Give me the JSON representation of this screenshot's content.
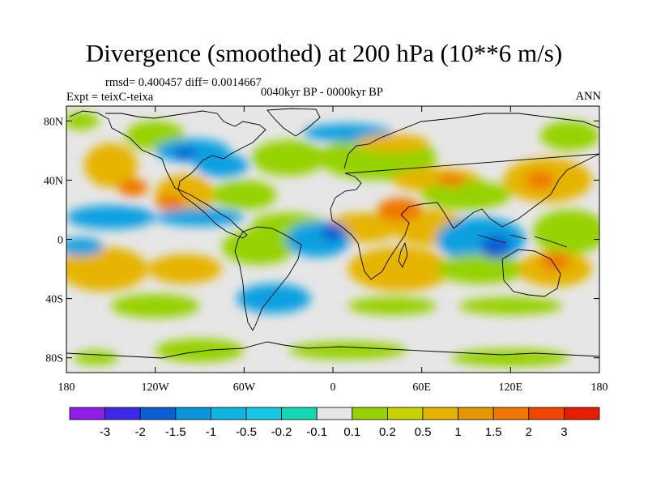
{
  "header": {
    "title": "Divergence (smoothed) at 200 hPa (10**6 m/s)",
    "stats": "rmsd= 0.400457 diff= 0.0014667",
    "experiment": "Expt = teixC-teixa",
    "period": "0040kyr BP - 0000kyr BP",
    "season": "ANN"
  },
  "map": {
    "projection": "cylindrical-equidistant",
    "lon_range": [
      -180,
      180
    ],
    "lat_range": [
      -90,
      90
    ],
    "y_ticks": [
      {
        "lat": 80,
        "label": "80N"
      },
      {
        "lat": 40,
        "label": "40N"
      },
      {
        "lat": 0,
        "label": "0"
      },
      {
        "lat": -40,
        "label": "40S"
      },
      {
        "lat": -80,
        "label": "80S"
      }
    ],
    "x_ticks": [
      {
        "lon": -180,
        "label": "180"
      },
      {
        "lon": -120,
        "label": "120W"
      },
      {
        "lon": -60,
        "label": "60W"
      },
      {
        "lon": 0,
        "label": "0"
      },
      {
        "lon": 60,
        "label": "60E"
      },
      {
        "lon": 120,
        "label": "120E"
      },
      {
        "lon": 180,
        "label": "180"
      }
    ],
    "blobs": [
      {
        "lon": -170,
        "lat": 80,
        "rx": 12,
        "ry": 6,
        "color": "#96d200"
      },
      {
        "lon": -120,
        "lat": 70,
        "rx": 20,
        "ry": 10,
        "color": "#96d200"
      },
      {
        "lon": -95,
        "lat": 60,
        "rx": 25,
        "ry": 8,
        "color": "#0fa0e1"
      },
      {
        "lon": -75,
        "lat": 50,
        "rx": 18,
        "ry": 8,
        "color": "#0fa0e1"
      },
      {
        "lon": -150,
        "lat": 50,
        "rx": 18,
        "ry": 15,
        "color": "#e6b400"
      },
      {
        "lon": -100,
        "lat": 30,
        "rx": 20,
        "ry": 14,
        "color": "#e6b400"
      },
      {
        "lon": -60,
        "lat": 30,
        "rx": 22,
        "ry": 10,
        "color": "#96d200"
      },
      {
        "lon": -30,
        "lat": 55,
        "rx": 25,
        "ry": 12,
        "color": "#96d200"
      },
      {
        "lon": 30,
        "lat": 55,
        "rx": 40,
        "ry": 15,
        "color": "#96d200"
      },
      {
        "lon": 10,
        "lat": 72,
        "rx": 30,
        "ry": 6,
        "color": "#0fa0e1"
      },
      {
        "lon": 40,
        "lat": 65,
        "rx": 25,
        "ry": 6,
        "color": "#e6b400"
      },
      {
        "lon": 70,
        "lat": 40,
        "rx": 30,
        "ry": 8,
        "color": "#e6b400"
      },
      {
        "lon": 90,
        "lat": 30,
        "rx": 30,
        "ry": 10,
        "color": "#96d200"
      },
      {
        "lon": 145,
        "lat": 40,
        "rx": 30,
        "ry": 15,
        "color": "#e6b400"
      },
      {
        "lon": 160,
        "lat": 70,
        "rx": 20,
        "ry": 10,
        "color": "#96d200"
      },
      {
        "lon": -150,
        "lat": 15,
        "rx": 30,
        "ry": 8,
        "color": "#0fa0e1"
      },
      {
        "lon": -90,
        "lat": 15,
        "rx": 30,
        "ry": 6,
        "color": "#0fa0e1"
      },
      {
        "lon": -30,
        "lat": 10,
        "rx": 25,
        "ry": 8,
        "color": "#96d200"
      },
      {
        "lon": 20,
        "lat": 8,
        "rx": 25,
        "ry": 10,
        "color": "#e6b400"
      },
      {
        "lon": 65,
        "lat": 8,
        "rx": 25,
        "ry": 12,
        "color": "#e6b400"
      },
      {
        "lon": 100,
        "lat": 0,
        "rx": 30,
        "ry": 15,
        "color": "#0fa0e1"
      },
      {
        "lon": 160,
        "lat": 5,
        "rx": 25,
        "ry": 15,
        "color": "#96d200"
      },
      {
        "lon": -155,
        "lat": -20,
        "rx": 30,
        "ry": 15,
        "color": "#e6b400"
      },
      {
        "lon": -170,
        "lat": -5,
        "rx": 15,
        "ry": 6,
        "color": "#0fa0e1"
      },
      {
        "lon": -100,
        "lat": -20,
        "rx": 25,
        "ry": 10,
        "color": "#e6b400"
      },
      {
        "lon": -50,
        "lat": -5,
        "rx": 25,
        "ry": 12,
        "color": "#96d200"
      },
      {
        "lon": -10,
        "lat": 0,
        "rx": 22,
        "ry": 12,
        "color": "#0fa0e1"
      },
      {
        "lon": 0,
        "lat": 5,
        "rx": 8,
        "ry": 6,
        "color": "#0a5fd2"
      },
      {
        "lon": 45,
        "lat": -20,
        "rx": 35,
        "ry": 15,
        "color": "#e6b400"
      },
      {
        "lon": 100,
        "lat": -20,
        "rx": 30,
        "ry": 10,
        "color": "#96d200"
      },
      {
        "lon": 150,
        "lat": -20,
        "rx": 25,
        "ry": 12,
        "color": "#e6b400"
      },
      {
        "lon": -120,
        "lat": -45,
        "rx": 30,
        "ry": 8,
        "color": "#96d200"
      },
      {
        "lon": -40,
        "lat": -40,
        "rx": 25,
        "ry": 10,
        "color": "#0fa0e1"
      },
      {
        "lon": 40,
        "lat": -45,
        "rx": 30,
        "ry": 6,
        "color": "#96d200"
      },
      {
        "lon": 120,
        "lat": -45,
        "rx": 35,
        "ry": 6,
        "color": "#96d200"
      },
      {
        "lon": -160,
        "lat": -80,
        "rx": 15,
        "ry": 5,
        "color": "#96d200"
      },
      {
        "lon": -90,
        "lat": -75,
        "rx": 30,
        "ry": 8,
        "color": "#96d200"
      },
      {
        "lon": 10,
        "lat": -75,
        "rx": 40,
        "ry": 6,
        "color": "#96d200"
      },
      {
        "lon": 120,
        "lat": -80,
        "rx": 40,
        "ry": 6,
        "color": "#96d200"
      },
      {
        "lon": -135,
        "lat": 35,
        "rx": 10,
        "ry": 6,
        "color": "#f07800"
      },
      {
        "lon": -110,
        "lat": 25,
        "rx": 10,
        "ry": 5,
        "color": "#f07800"
      },
      {
        "lon": 140,
        "lat": 40,
        "rx": 10,
        "ry": 6,
        "color": "#f07800"
      },
      {
        "lon": 80,
        "lat": 40,
        "rx": 10,
        "ry": 4,
        "color": "#f07800"
      },
      {
        "lon": 110,
        "lat": -5,
        "rx": 10,
        "ry": 8,
        "color": "#0a5fd2"
      },
      {
        "lon": -100,
        "lat": 58,
        "rx": 8,
        "ry": 4,
        "color": "#0a5fd2"
      },
      {
        "lon": 45,
        "lat": 20,
        "rx": 15,
        "ry": 8,
        "color": "#f07800"
      },
      {
        "lon": 150,
        "lat": -15,
        "rx": 10,
        "ry": 6,
        "color": "#f07800"
      }
    ]
  },
  "colorbar": {
    "colors": [
      "#8c1ee6",
      "#3c28e6",
      "#0a5fd2",
      "#0a96dc",
      "#0fb4e1",
      "#16c8e6",
      "#14d7b4",
      "#e6e6e6",
      "#96d200",
      "#c8d200",
      "#e6b400",
      "#e69600",
      "#f07800",
      "#f04600",
      "#e61e00"
    ],
    "labels": [
      "-3",
      "-2",
      "-1.5",
      "-1",
      "-0.5",
      "-0.2",
      "-0.1",
      "0.1",
      "0.2",
      "0.5",
      "1",
      "1.5",
      "2",
      "3"
    ]
  }
}
